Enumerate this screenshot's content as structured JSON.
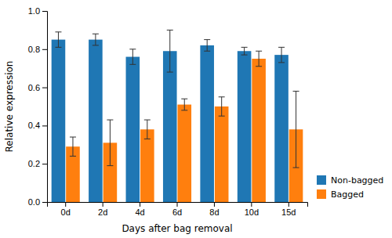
{
  "chart_data": {
    "type": "bar",
    "categories": [
      "0d",
      "2d",
      "4d",
      "6d",
      "8d",
      "10d",
      "15d"
    ],
    "series": [
      {
        "name": "Non-bagged",
        "values": [
          0.85,
          0.85,
          0.76,
          0.79,
          0.82,
          0.79,
          0.77
        ],
        "errors": [
          0.04,
          0.03,
          0.04,
          0.11,
          0.03,
          0.02,
          0.04
        ]
      },
      {
        "name": "Bagged",
        "values": [
          0.29,
          0.31,
          0.38,
          0.51,
          0.5,
          0.75,
          0.38
        ],
        "errors": [
          0.05,
          0.12,
          0.05,
          0.03,
          0.05,
          0.04,
          0.2
        ]
      }
    ],
    "xlabel": "Days after bag removal",
    "ylabel": "Relative expression",
    "ylim": [
      0.0,
      1.0
    ],
    "yticks": [
      {
        "value": 0.0,
        "label": "0.0"
      },
      0.2,
      0.4,
      0.6,
      0.8,
      {
        "value": 1.0,
        "label": "1.0"
      }
    ],
    "legend": "lower right"
  }
}
